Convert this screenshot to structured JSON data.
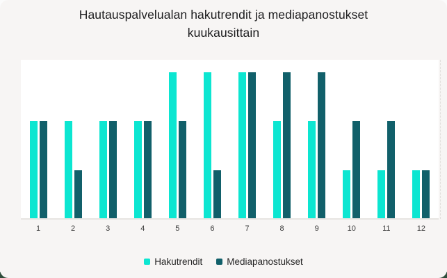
{
  "page": {
    "background": "#fbfbfb",
    "bottom_band_color": "#304e3c",
    "card_background": "#f7f5f4"
  },
  "chart_data": {
    "type": "bar",
    "title": "Hautauspalvelualan hakutrendit ja mediapanostukset kuukausittain",
    "categories": [
      "1",
      "2",
      "3",
      "4",
      "5",
      "6",
      "7",
      "8",
      "9",
      "10",
      "11",
      "12"
    ],
    "series": [
      {
        "name": "Hakutrendit",
        "color": "#0ce6d1",
        "values": [
          2,
          2,
          2,
          2,
          3,
          3,
          3,
          2,
          2,
          1,
          1,
          1
        ]
      },
      {
        "name": "Mediapanostukset",
        "color": "#11606a",
        "values": [
          2,
          1,
          2,
          2,
          2,
          1,
          3,
          3,
          3,
          2,
          2,
          1
        ]
      }
    ],
    "xlabel": "",
    "ylabel": "",
    "ylim": [
      0,
      3.26
    ],
    "grid": false,
    "legend_position": "bottom",
    "plot_background": "#ffffff",
    "axis_line_color": "#e7e5e2"
  }
}
